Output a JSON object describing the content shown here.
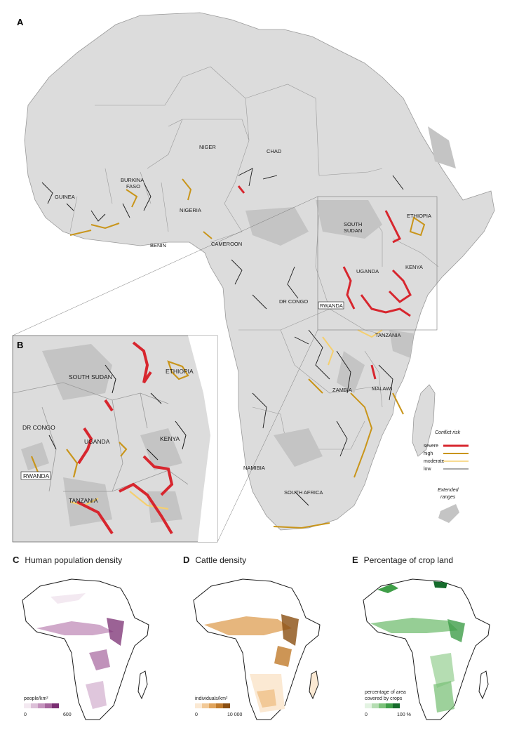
{
  "panels": {
    "a": {
      "letter": "A"
    },
    "b": {
      "letter": "B"
    },
    "c": {
      "letter": "C",
      "title": "Human population density",
      "unit": "people/km²",
      "min": "0",
      "max": "600",
      "colors": [
        "#f3e9f1",
        "#dcc0d8",
        "#c493bd",
        "#a5649c",
        "#7a2e72"
      ]
    },
    "d": {
      "letter": "D",
      "title": "Cattle density",
      "unit": "individuals/km²",
      "min": "0",
      "max": "10 000",
      "colors": [
        "#fbe9d3",
        "#f2c997",
        "#e0a45c",
        "#c07a2b",
        "#8a4f12"
      ]
    },
    "e": {
      "letter": "E",
      "title": "Percentage of crop land",
      "unit_line1": "percentage of area",
      "unit_line2": "covered by crops",
      "min": "0",
      "max": "100 %",
      "colors": [
        "#e3f3e2",
        "#b5ddb2",
        "#7cc27a",
        "#3f9e48",
        "#166b2c"
      ]
    }
  },
  "countries_a": {
    "niger": "NIGER",
    "chad": "CHAD",
    "burkina": "BURKINA",
    "faso": "FASO",
    "guinea": "GUINEA",
    "nigeria": "NIGERIA",
    "benin": "BENIN",
    "cameroon": "CAMEROON",
    "south": "SOUTH",
    "sudan": "SUDAN",
    "ethiopia": "ETHIOPIA",
    "uganda": "UGANDA",
    "kenya": "KENYA",
    "drcongo": "DR CONGO",
    "rwanda": "RWANDA",
    "tanzania": "TANZANIA",
    "zambia": "ZAMBIA",
    "malawi": "MALAWI",
    "namibia": "NAMIBIA",
    "southafrica": "SOUTH AFRICA"
  },
  "countries_b": {
    "southsudan": "SOUTH SUDAN",
    "ethiopia": "ETHIOPIA",
    "drcongo": "DR CONGO",
    "uganda": "UGANDA",
    "kenya": "KENYA",
    "rwanda": "RWANDA",
    "tanzania": "TANZANIA"
  },
  "legend": {
    "title": "Conflict risk",
    "items": [
      {
        "label": "severe",
        "color": "#d7262e"
      },
      {
        "label": "high",
        "color": "#c9951a"
      },
      {
        "label": "moderate",
        "color": "#f5cf6e"
      },
      {
        "label": "low",
        "color": "#1a1a1a"
      }
    ],
    "extended_line1": "Extended",
    "extended_line2": "ranges"
  },
  "colors": {
    "land": "#dcdcdc",
    "range": "#c4c4c4",
    "border": "#6e6e6e"
  }
}
